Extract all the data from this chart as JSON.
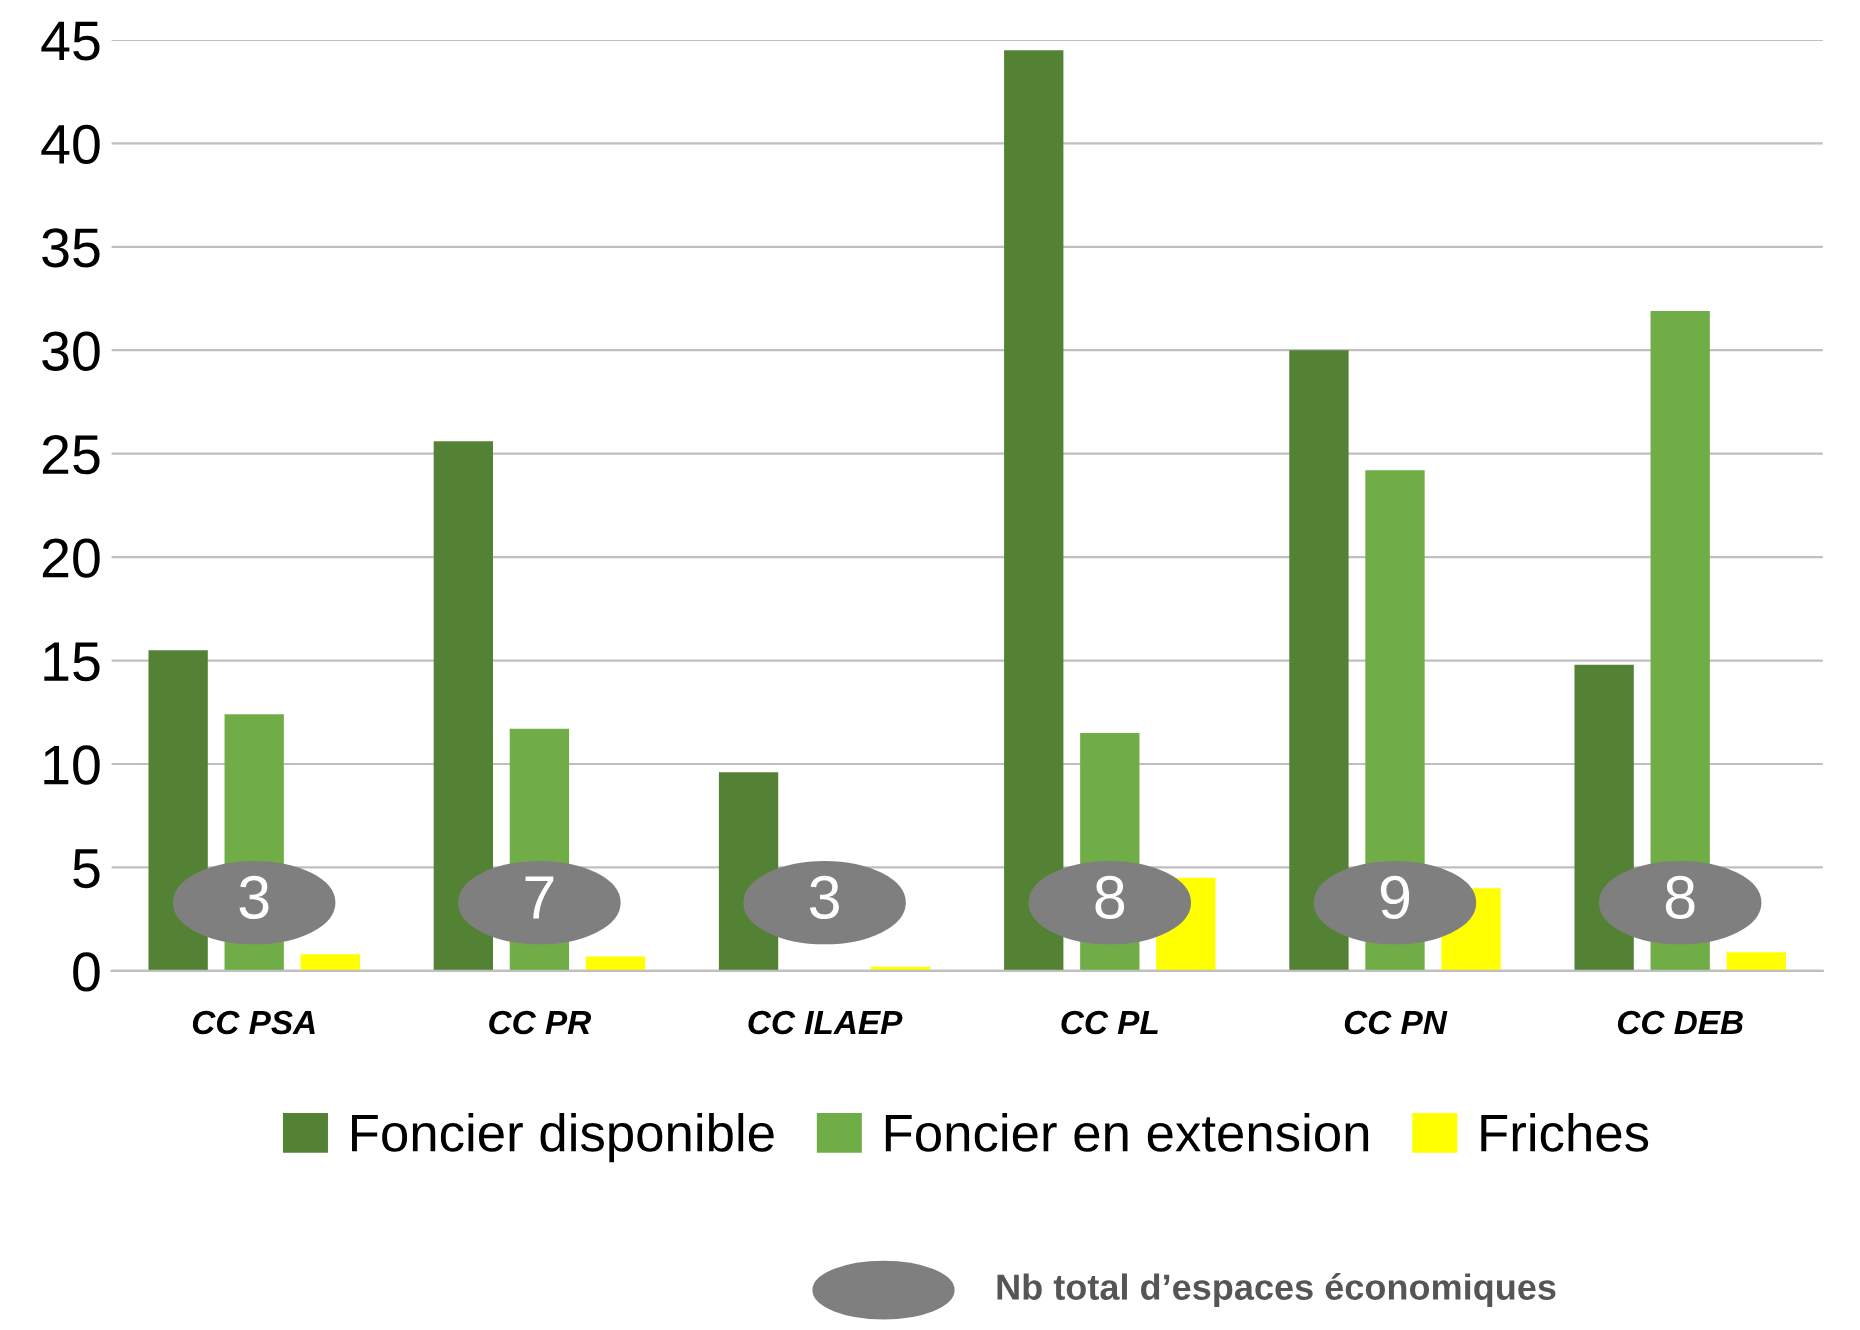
{
  "chart_data": {
    "type": "bar",
    "categories": [
      "CC PSA",
      "CC PR",
      "CC ILAEP",
      "CC PL",
      "CC PN",
      "CC DEB"
    ],
    "series": [
      {
        "name": "Foncier disponible",
        "color": "#548235",
        "values": [
          15.5,
          25.6,
          9.6,
          44.5,
          30.0,
          14.8
        ]
      },
      {
        "name": "Foncier en extension",
        "color": "#70ad47",
        "values": [
          12.4,
          11.7,
          0,
          11.5,
          24.2,
          31.9
        ]
      },
      {
        "name": "Friches",
        "color": "#ffff00",
        "values": [
          0.8,
          0.7,
          0.2,
          4.5,
          4.0,
          0.9
        ]
      }
    ],
    "annotations": [
      "3",
      "7",
      "3",
      "8",
      "9",
      "8",
      "Nb total d’espaces économiques"
    ],
    "ylim": [
      0,
      45
    ],
    "yticks": [
      0,
      5,
      10,
      15,
      20,
      25,
      30,
      35,
      40,
      45
    ],
    "grid": "y",
    "legend": "bottom"
  }
}
